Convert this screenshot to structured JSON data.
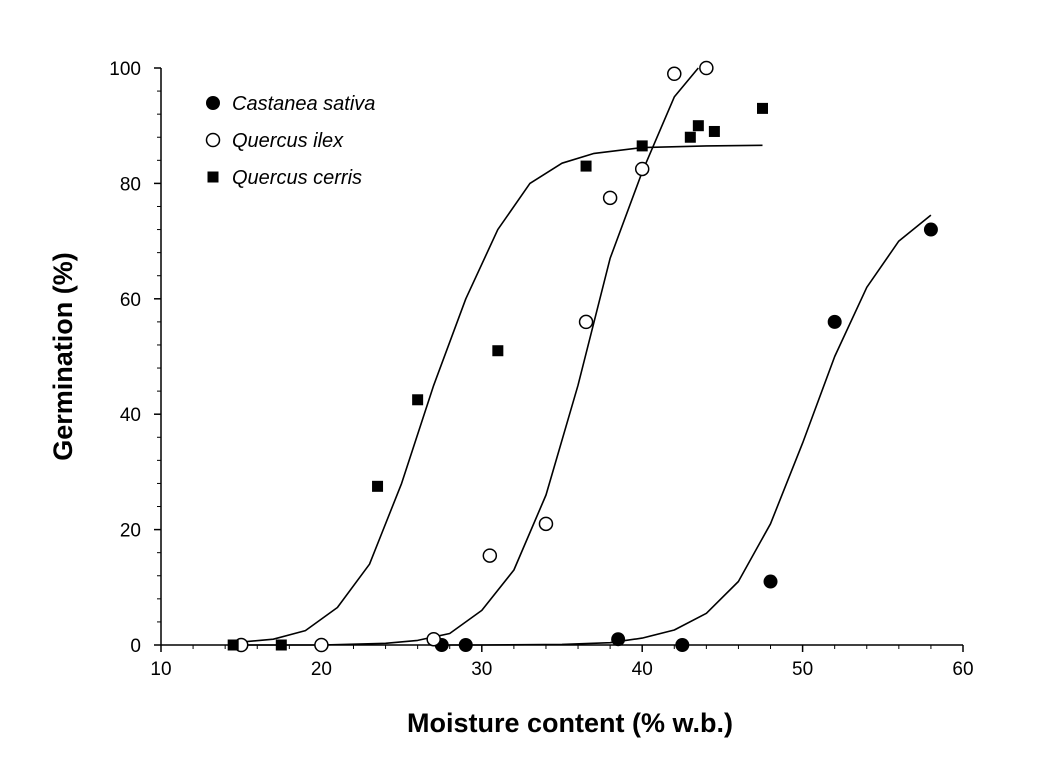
{
  "chart_data": {
    "type": "scatter",
    "title": "",
    "xlabel": "Moisture content (% w.b.)",
    "ylabel": "Germination (%)",
    "xlim": [
      10,
      60
    ],
    "ylim": [
      0,
      100
    ],
    "xticks": [
      10,
      20,
      30,
      40,
      50,
      60
    ],
    "yticks": [
      0,
      20,
      40,
      60,
      80,
      100
    ],
    "grid": false,
    "legend_position": "top-left",
    "series": [
      {
        "name": "Castanea sativa",
        "marker": "filled-circle",
        "color": "#000000",
        "points": [
          [
            27.5,
            0
          ],
          [
            29,
            0
          ],
          [
            38.5,
            1
          ],
          [
            42.5,
            0
          ],
          [
            48,
            11
          ],
          [
            52,
            56
          ],
          [
            58,
            72
          ]
        ],
        "fit": [
          [
            27,
            0
          ],
          [
            30,
            0
          ],
          [
            35,
            0.1
          ],
          [
            38,
            0.4
          ],
          [
            40,
            1.2
          ],
          [
            42,
            2.6
          ],
          [
            44,
            5.5
          ],
          [
            46,
            11
          ],
          [
            48,
            21
          ],
          [
            50,
            35
          ],
          [
            52,
            50
          ],
          [
            54,
            62
          ],
          [
            56,
            70
          ],
          [
            58,
            74.5
          ]
        ]
      },
      {
        "name": "Quercus ilex",
        "marker": "open-circle",
        "color": "#000000",
        "points": [
          [
            15,
            0
          ],
          [
            20,
            0
          ],
          [
            27,
            1
          ],
          [
            30.5,
            15.5
          ],
          [
            34,
            21
          ],
          [
            36.5,
            56
          ],
          [
            38,
            77.5
          ],
          [
            40,
            82.5
          ],
          [
            42,
            99
          ],
          [
            44,
            100
          ]
        ],
        "fit": [
          [
            15,
            0
          ],
          [
            20,
            0
          ],
          [
            24,
            0.3
          ],
          [
            26,
            0.8
          ],
          [
            28,
            2
          ],
          [
            30,
            6
          ],
          [
            32,
            13
          ],
          [
            34,
            26
          ],
          [
            36,
            45
          ],
          [
            38,
            67
          ],
          [
            40,
            82
          ],
          [
            42,
            95
          ],
          [
            43.5,
            100
          ]
        ]
      },
      {
        "name": "Quercus cerris",
        "marker": "filled-square",
        "color": "#000000",
        "points": [
          [
            14.5,
            0
          ],
          [
            17.5,
            0
          ],
          [
            23.5,
            27.5
          ],
          [
            26,
            42.5
          ],
          [
            31,
            51
          ],
          [
            36.5,
            83
          ],
          [
            40,
            86.5
          ],
          [
            43,
            88
          ],
          [
            43.5,
            90
          ],
          [
            44.5,
            89
          ],
          [
            47.5,
            93
          ]
        ],
        "fit": [
          [
            15,
            0.5
          ],
          [
            17,
            1
          ],
          [
            19,
            2.5
          ],
          [
            21,
            6.5
          ],
          [
            23,
            14
          ],
          [
            25,
            28
          ],
          [
            27,
            45
          ],
          [
            29,
            60
          ],
          [
            31,
            72
          ],
          [
            33,
            80
          ],
          [
            35,
            83.5
          ],
          [
            37,
            85.2
          ],
          [
            40,
            86.2
          ],
          [
            44,
            86.5
          ],
          [
            47.5,
            86.6
          ]
        ]
      }
    ]
  }
}
